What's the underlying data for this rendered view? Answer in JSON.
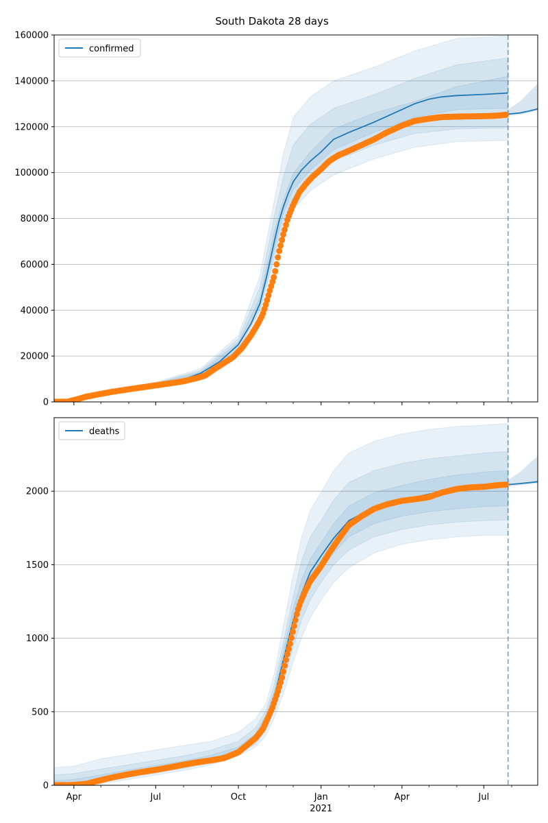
{
  "figure": {
    "title": "South Dakota 28 days"
  },
  "colors": {
    "model": "#1f77b4",
    "observed": "#ff7f0e",
    "band": "#1f77b4",
    "grid": "#b0b0b0",
    "cutoff": "#1f77b4"
  },
  "x_axis": {
    "min": "2020-03-10",
    "max": "2021-08-30",
    "major_ticks": [
      {
        "date": "2020-04-01",
        "label": "Apr"
      },
      {
        "date": "2020-07-01",
        "label": "Jul"
      },
      {
        "date": "2020-10-01",
        "label": "Oct"
      },
      {
        "date": "2021-01-01",
        "label": "Jan"
      },
      {
        "date": "2021-04-01",
        "label": "Apr"
      },
      {
        "date": "2021-07-01",
        "label": "Jul"
      }
    ],
    "year_label": {
      "date": "2021-01-01",
      "label": "2021"
    },
    "minor_ticks": [
      "2020-05-01",
      "2020-06-01",
      "2020-08-01",
      "2020-09-01",
      "2020-11-01",
      "2020-12-01",
      "2021-02-01",
      "2021-03-01",
      "2021-05-01",
      "2021-06-01",
      "2021-08-01",
      "2021-09-01"
    ]
  },
  "chart_data": [
    {
      "type": "line",
      "legend": "confirmed",
      "legend_position": "top-left",
      "grid": "horizontal",
      "ylim": [
        0,
        160000
      ],
      "yticks": [
        0,
        20000,
        40000,
        60000,
        80000,
        100000,
        120000,
        140000,
        160000
      ],
      "forecast_start": "2021-07-28",
      "model": {
        "x": [
          "2020-03-10",
          "2020-04-01",
          "2020-05-01",
          "2020-06-01",
          "2020-07-01",
          "2020-08-01",
          "2020-08-20",
          "2020-09-10",
          "2020-10-01",
          "2020-10-15",
          "2020-10-25",
          "2020-11-01",
          "2020-11-10",
          "2020-11-15",
          "2020-11-20",
          "2020-11-25",
          "2020-12-01",
          "2020-12-10",
          "2020-12-20",
          "2021-01-01",
          "2021-01-15",
          "2021-02-01",
          "2021-03-01",
          "2021-04-01",
          "2021-04-15",
          "2021-05-01",
          "2021-05-15",
          "2021-06-01",
          "2021-07-01",
          "2021-07-28"
        ],
        "y": [
          0,
          400,
          3200,
          5600,
          7800,
          9800,
          12500,
          17500,
          25000,
          34000,
          43000,
          54000,
          70000,
          78500,
          85000,
          90500,
          96000,
          101000,
          105000,
          109000,
          114500,
          117500,
          122000,
          127500,
          130000,
          132000,
          133000,
          133600,
          134100,
          134700
        ]
      },
      "forecast": {
        "x": [
          "2021-07-28",
          "2021-08-10",
          "2021-08-20",
          "2021-08-30"
        ],
        "y": [
          125500,
          126000,
          126800,
          127800
        ]
      },
      "bands": [
        {
          "x": [
            "2020-03-10",
            "2020-05-01",
            "2020-07-01",
            "2020-08-20",
            "2020-10-01",
            "2020-10-25",
            "2020-11-10",
            "2020-11-20",
            "2020-12-01",
            "2020-12-20",
            "2021-01-15",
            "2021-03-01",
            "2021-04-15",
            "2021-06-01",
            "2021-07-28"
          ],
          "lower": [
            0,
            2800,
            7000,
            11000,
            21500,
            37000,
            58000,
            74000,
            84000,
            92000,
            99000,
            106000,
            111000,
            113500,
            114000
          ],
          "upper": [
            0,
            3600,
            8600,
            14500,
            29000,
            55000,
            88000,
            108000,
            124000,
            133000,
            140000,
            146000,
            153000,
            158500,
            159500
          ]
        },
        {
          "x": [
            "2020-03-10",
            "2020-05-01",
            "2020-07-01",
            "2020-08-20",
            "2020-10-01",
            "2020-10-25",
            "2020-11-10",
            "2020-11-20",
            "2020-12-01",
            "2020-12-20",
            "2021-01-15",
            "2021-03-01",
            "2021-04-15",
            "2021-06-01",
            "2021-07-28"
          ],
          "lower": [
            0,
            2950,
            7300,
            11600,
            23000,
            40000,
            63000,
            79000,
            89000,
            97000,
            105000,
            112000,
            117000,
            119000,
            119500
          ],
          "upper": [
            0,
            3450,
            8300,
            13700,
            27500,
            50000,
            81000,
            98000,
            112000,
            121000,
            128000,
            134000,
            141000,
            147000,
            150000
          ]
        },
        {
          "x": [
            "2020-03-10",
            "2020-05-01",
            "2020-07-01",
            "2020-08-20",
            "2020-10-01",
            "2020-10-25",
            "2020-11-10",
            "2020-11-20",
            "2020-12-01",
            "2020-12-20",
            "2021-01-15",
            "2021-03-01",
            "2021-04-15",
            "2021-06-01",
            "2021-07-28"
          ],
          "lower": [
            0,
            3050,
            7550,
            12000,
            24200,
            41500,
            66500,
            82000,
            92500,
            101000,
            110000,
            117500,
            124000,
            127500,
            128000
          ],
          "upper": [
            0,
            3350,
            8050,
            13000,
            26000,
            45500,
            74500,
            88000,
            99500,
            109000,
            119000,
            126000,
            131000,
            137500,
            142000
          ]
        }
      ],
      "observed": {
        "x": [
          "2020-03-10",
          "2020-03-25",
          "2020-04-05",
          "2020-04-15",
          "2020-05-01",
          "2020-05-15",
          "2020-06-01",
          "2020-06-15",
          "2020-07-01",
          "2020-07-15",
          "2020-08-01",
          "2020-08-15",
          "2020-08-25",
          "2020-09-05",
          "2020-09-15",
          "2020-09-25",
          "2020-10-05",
          "2020-10-15",
          "2020-10-22",
          "2020-10-28",
          "2020-11-01",
          "2020-11-05",
          "2020-11-10",
          "2020-11-15",
          "2020-11-20",
          "2020-11-25",
          "2020-12-01",
          "2020-12-08",
          "2020-12-15",
          "2020-12-22",
          "2021-01-01",
          "2021-01-10",
          "2021-01-20",
          "2021-02-01",
          "2021-02-15",
          "2021-03-01",
          "2021-03-15",
          "2021-04-01",
          "2021-04-15",
          "2021-05-01",
          "2021-05-15",
          "2021-06-01",
          "2021-06-15",
          "2021-07-01",
          "2021-07-15",
          "2021-07-26"
        ],
        "y": [
          0,
          100,
          1200,
          2300,
          3500,
          4500,
          5500,
          6300,
          7200,
          8000,
          9000,
          10300,
          11500,
          14500,
          17000,
          19500,
          23500,
          29000,
          33500,
          38000,
          43000,
          48500,
          55000,
          65000,
          73000,
          80000,
          86000,
          91500,
          95000,
          98000,
          101500,
          105000,
          107500,
          109500,
          112000,
          114500,
          117500,
          120500,
          122500,
          123500,
          124200,
          124400,
          124500,
          124600,
          124800,
          125200
        ]
      }
    },
    {
      "type": "line",
      "legend": "deaths",
      "legend_position": "top-left",
      "grid": "horizontal",
      "ylim": [
        0,
        2500
      ],
      "yticks": [
        0,
        500,
        1000,
        1500,
        2000
      ],
      "forecast_start": "2021-07-28",
      "model": {
        "x": [
          "2020-03-10",
          "2020-04-01",
          "2020-05-01",
          "2020-06-01",
          "2020-07-01",
          "2020-08-01",
          "2020-09-01",
          "2020-10-01",
          "2020-10-20",
          "2020-11-01",
          "2020-11-10",
          "2020-11-20",
          "2020-11-30",
          "2020-12-10",
          "2020-12-20",
          "2021-01-01",
          "2021-01-15",
          "2021-02-01",
          "2021-03-01",
          "2021-04-01",
          "2021-05-01",
          "2021-06-01",
          "2021-07-01",
          "2021-07-28"
        ],
        "y": [
          0,
          5,
          40,
          80,
          110,
          140,
          180,
          230,
          320,
          450,
          600,
          850,
          1100,
          1300,
          1450,
          1560,
          1680,
          1800,
          1890,
          1940,
          1980,
          2020,
          2040,
          2050
        ]
      },
      "forecast": {
        "x": [
          "2021-07-28",
          "2021-08-10",
          "2021-08-20",
          "2021-08-30"
        ],
        "y": [
          2045,
          2052,
          2058,
          2065
        ]
      },
      "bands": [
        {
          "x": [
            "2020-03-10",
            "2020-04-01",
            "2020-05-01",
            "2020-06-01",
            "2020-07-01",
            "2020-08-01",
            "2020-09-01",
            "2020-10-01",
            "2020-10-20",
            "2020-11-01",
            "2020-11-10",
            "2020-11-20",
            "2020-11-30",
            "2020-12-10",
            "2020-12-20",
            "2021-01-01",
            "2021-01-15",
            "2021-02-01",
            "2021-03-01",
            "2021-04-01",
            "2021-05-01",
            "2021-06-01",
            "2021-07-01",
            "2021-07-28"
          ],
          "lower": [
            0,
            0,
            10,
            40,
            70,
            100,
            140,
            200,
            260,
            340,
            460,
            620,
            820,
            1000,
            1140,
            1260,
            1380,
            1480,
            1580,
            1640,
            1670,
            1690,
            1700,
            1700
          ],
          "upper": [
            120,
            130,
            180,
            210,
            240,
            270,
            300,
            360,
            450,
            560,
            760,
            1080,
            1400,
            1680,
            1870,
            1990,
            2140,
            2260,
            2340,
            2390,
            2420,
            2440,
            2450,
            2460
          ]
        },
        {
          "x": [
            "2020-03-10",
            "2020-04-01",
            "2020-05-01",
            "2020-06-01",
            "2020-07-01",
            "2020-08-01",
            "2020-09-01",
            "2020-10-01",
            "2020-10-20",
            "2020-11-01",
            "2020-11-10",
            "2020-11-20",
            "2020-11-30",
            "2020-12-10",
            "2020-12-20",
            "2021-01-01",
            "2021-01-15",
            "2021-02-01",
            "2021-03-01",
            "2021-04-01",
            "2021-05-01",
            "2021-06-01",
            "2021-07-01",
            "2021-07-28"
          ],
          "lower": [
            0,
            0,
            20,
            55,
            85,
            115,
            155,
            210,
            280,
            380,
            510,
            700,
            920,
            1120,
            1260,
            1380,
            1500,
            1600,
            1690,
            1740,
            1770,
            1790,
            1800,
            1805
          ],
          "upper": [
            70,
            80,
            110,
            140,
            170,
            200,
            240,
            300,
            390,
            510,
            690,
            970,
            1260,
            1520,
            1690,
            1800,
            1940,
            2060,
            2140,
            2190,
            2220,
            2240,
            2260,
            2270
          ]
        },
        {
          "x": [
            "2020-03-10",
            "2020-04-01",
            "2020-05-01",
            "2020-06-01",
            "2020-07-01",
            "2020-08-01",
            "2020-09-01",
            "2020-10-01",
            "2020-10-20",
            "2020-11-01",
            "2020-11-10",
            "2020-11-20",
            "2020-11-30",
            "2020-12-10",
            "2020-12-20",
            "2021-01-01",
            "2021-01-15",
            "2021-02-01",
            "2021-03-01",
            "2021-04-01",
            "2021-05-01",
            "2021-06-01",
            "2021-07-01",
            "2021-07-28"
          ],
          "lower": [
            0,
            0,
            28,
            65,
            95,
            125,
            165,
            220,
            300,
            415,
            555,
            775,
            1010,
            1210,
            1350,
            1460,
            1580,
            1690,
            1780,
            1830,
            1860,
            1880,
            1895,
            1900
          ],
          "upper": [
            30,
            40,
            70,
            105,
            135,
            165,
            205,
            260,
            350,
            480,
            640,
            910,
            1180,
            1390,
            1540,
            1650,
            1780,
            1900,
            1990,
            2040,
            2080,
            2110,
            2130,
            2140
          ]
        }
      ],
      "observed": {
        "x": [
          "2020-03-10",
          "2020-04-01",
          "2020-04-15",
          "2020-05-01",
          "2020-05-15",
          "2020-06-01",
          "2020-06-15",
          "2020-07-01",
          "2020-07-15",
          "2020-08-01",
          "2020-08-15",
          "2020-09-01",
          "2020-09-15",
          "2020-10-01",
          "2020-10-10",
          "2020-10-20",
          "2020-10-28",
          "2020-11-03",
          "2020-11-08",
          "2020-11-13",
          "2020-11-18",
          "2020-11-21",
          "2020-11-24",
          "2020-11-27",
          "2020-11-30",
          "2020-12-03",
          "2020-12-06",
          "2020-12-10",
          "2020-12-15",
          "2020-12-20",
          "2020-12-26",
          "2021-01-01",
          "2021-01-10",
          "2021-01-20",
          "2021-02-01",
          "2021-02-15",
          "2021-03-01",
          "2021-03-15",
          "2021-04-01",
          "2021-04-15",
          "2021-05-01",
          "2021-05-15",
          "2021-06-01",
          "2021-06-15",
          "2021-07-01",
          "2021-07-15",
          "2021-07-26"
        ],
        "y": [
          0,
          2,
          10,
          35,
          55,
          75,
          90,
          105,
          120,
          140,
          155,
          170,
          185,
          225,
          270,
          320,
          380,
          460,
          530,
          620,
          720,
          800,
          880,
          950,
          1030,
          1110,
          1190,
          1260,
          1330,
          1390,
          1440,
          1490,
          1580,
          1670,
          1770,
          1830,
          1880,
          1910,
          1935,
          1945,
          1960,
          1990,
          2015,
          2025,
          2030,
          2040,
          2045
        ]
      }
    }
  ]
}
